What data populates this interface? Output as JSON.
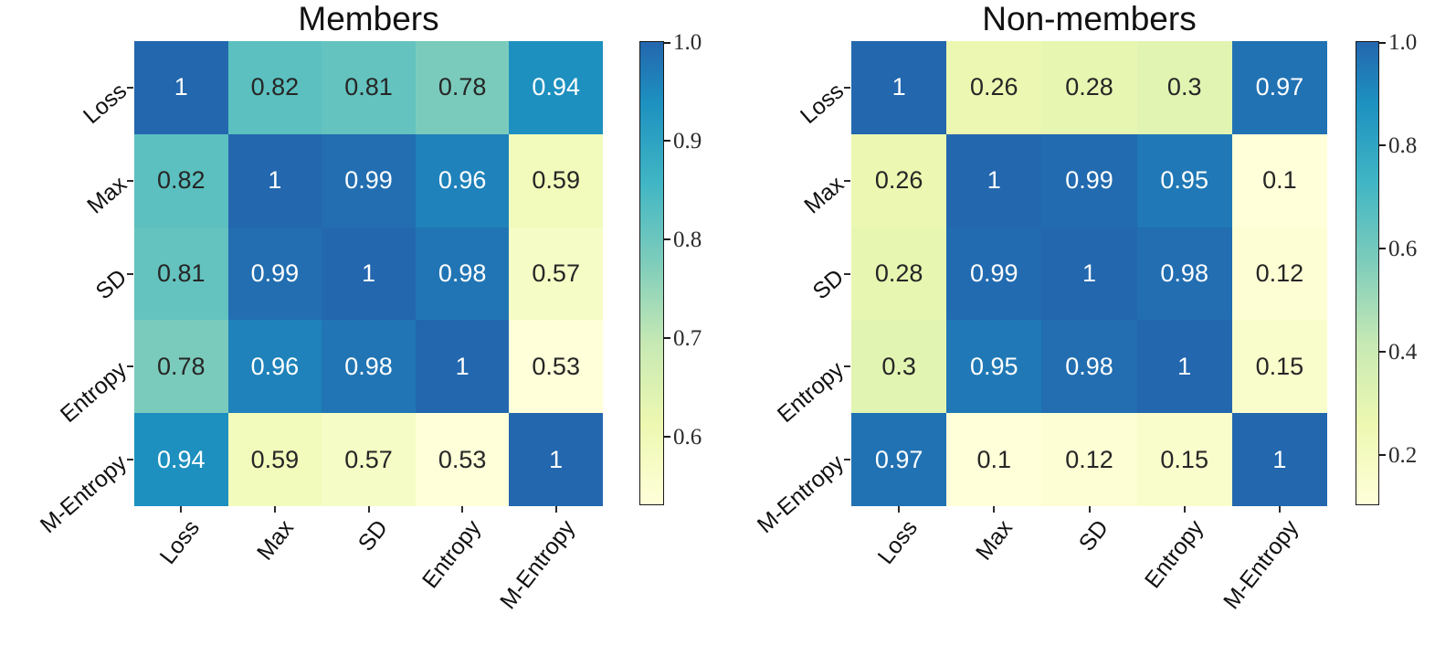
{
  "figure": {
    "background": "#ffffff",
    "text_color_dark": "#1a1a1a",
    "text_color_light": "#ffffff"
  },
  "colormap": {
    "name": "YlGnBu-truncated",
    "stops": [
      [
        0.0,
        "#ffffd9"
      ],
      [
        0.174,
        "#edf8b1"
      ],
      [
        0.347,
        "#c7e9b4"
      ],
      [
        0.52,
        "#7fcdbb"
      ],
      [
        0.694,
        "#41b6c4"
      ],
      [
        0.868,
        "#1d91c0"
      ],
      [
        1.0,
        "#2367ae"
      ]
    ]
  },
  "chart_data": [
    {
      "type": "heatmap",
      "title": "Members",
      "categories": [
        "Loss",
        "Max",
        "SD",
        "Entropy",
        "M-Entropy"
      ],
      "matrix": [
        [
          1,
          0.82,
          0.81,
          0.78,
          0.94
        ],
        [
          0.82,
          1,
          0.99,
          0.96,
          0.59
        ],
        [
          0.81,
          0.99,
          1,
          0.98,
          0.57
        ],
        [
          0.78,
          0.96,
          0.98,
          1,
          0.53
        ],
        [
          0.94,
          0.59,
          0.57,
          0.53,
          1
        ]
      ],
      "vmin": 0.53,
      "vmax": 1.0,
      "colorbar_ticks": [
        "1.0",
        "0.9",
        "0.8",
        "0.7",
        "0.6"
      ],
      "legend_position": "right",
      "grid": false
    },
    {
      "type": "heatmap",
      "title": "Non-members",
      "categories": [
        "Loss",
        "Max",
        "SD",
        "Entropy",
        "M-Entropy"
      ],
      "matrix": [
        [
          1,
          0.26,
          0.28,
          0.3,
          0.97
        ],
        [
          0.26,
          1,
          0.99,
          0.95,
          0.1
        ],
        [
          0.28,
          0.99,
          1,
          0.98,
          0.12
        ],
        [
          0.3,
          0.95,
          0.98,
          1,
          0.15
        ],
        [
          0.97,
          0.1,
          0.12,
          0.15,
          1
        ]
      ],
      "vmin": 0.1,
      "vmax": 1.0,
      "colorbar_ticks": [
        "1.0",
        "0.8",
        "0.6",
        "0.4",
        "0.2"
      ],
      "legend_position": "right",
      "grid": false
    }
  ]
}
